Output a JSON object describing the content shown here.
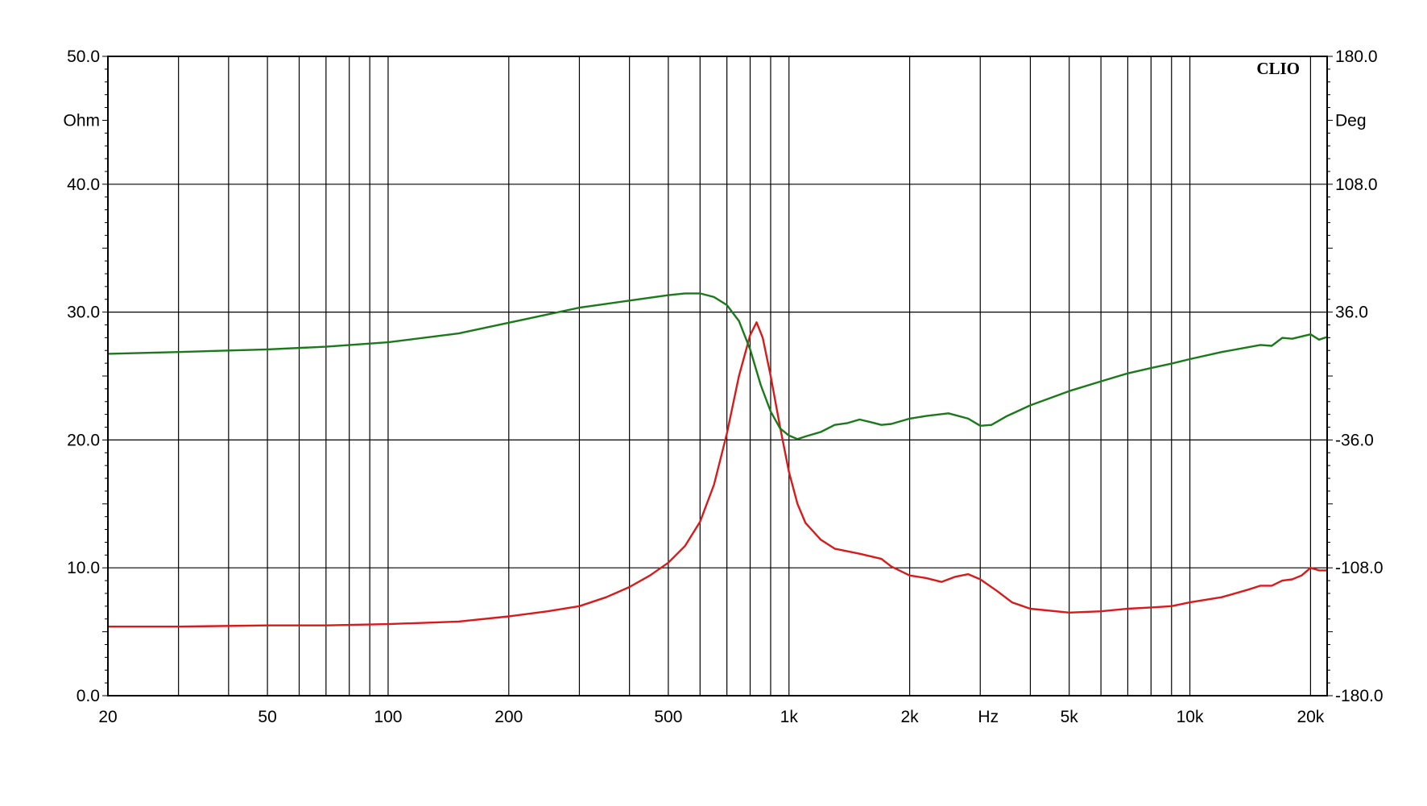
{
  "chart_data": {
    "type": "line",
    "brand": "CLIO",
    "x_scale": "log",
    "xlim": [
      20,
      22000
    ],
    "xlabel": "Hz",
    "x_ticks": [
      {
        "value": 20,
        "label": "20"
      },
      {
        "value": 50,
        "label": "50"
      },
      {
        "value": 100,
        "label": "100"
      },
      {
        "value": 200,
        "label": "200"
      },
      {
        "value": 500,
        "label": "500"
      },
      {
        "value": 1000,
        "label": "1k"
      },
      {
        "value": 2000,
        "label": "2k"
      },
      {
        "value": 5000,
        "label": "5k"
      },
      {
        "value": 10000,
        "label": "10k"
      },
      {
        "value": 20000,
        "label": "20k"
      }
    ],
    "x_gridlines": [
      20,
      30,
      40,
      50,
      60,
      70,
      80,
      90,
      100,
      200,
      300,
      400,
      500,
      600,
      700,
      800,
      900,
      1000,
      2000,
      3000,
      4000,
      5000,
      6000,
      7000,
      8000,
      9000,
      10000,
      20000
    ],
    "ylabel_left": "Ohm",
    "ylim_left": [
      0,
      50
    ],
    "y_ticks_left": [
      "0.0",
      "10.0",
      "20.0",
      "30.0",
      "40.0",
      "50.0"
    ],
    "ylabel_right": "Deg",
    "ylim_right": [
      -180,
      180
    ],
    "y_ticks_right": [
      "-180.0",
      "-108.0",
      "-36.0",
      "36.0",
      "108.0",
      "180.0"
    ],
    "grid": true,
    "series": [
      {
        "key": "impedance",
        "axis": "left",
        "color": "#d81a1a",
        "points": [
          [
            20,
            5.4
          ],
          [
            30,
            5.4
          ],
          [
            50,
            5.5
          ],
          [
            70,
            5.5
          ],
          [
            100,
            5.6
          ],
          [
            150,
            5.8
          ],
          [
            200,
            6.2
          ],
          [
            250,
            6.6
          ],
          [
            300,
            7.0
          ],
          [
            350,
            7.7
          ],
          [
            400,
            8.5
          ],
          [
            450,
            9.4
          ],
          [
            500,
            10.4
          ],
          [
            550,
            11.7
          ],
          [
            600,
            13.6
          ],
          [
            650,
            16.5
          ],
          [
            700,
            20.5
          ],
          [
            750,
            25.0
          ],
          [
            800,
            28.2
          ],
          [
            830,
            29.2
          ],
          [
            860,
            28.0
          ],
          [
            900,
            25.0
          ],
          [
            950,
            21.0
          ],
          [
            1000,
            17.5
          ],
          [
            1050,
            15.0
          ],
          [
            1100,
            13.5
          ],
          [
            1200,
            12.2
          ],
          [
            1300,
            11.5
          ],
          [
            1500,
            11.1
          ],
          [
            1700,
            10.7
          ],
          [
            1800,
            10.1
          ],
          [
            2000,
            9.4
          ],
          [
            2200,
            9.2
          ],
          [
            2400,
            8.9
          ],
          [
            2600,
            9.3
          ],
          [
            2800,
            9.5
          ],
          [
            3000,
            9.1
          ],
          [
            3300,
            8.2
          ],
          [
            3600,
            7.3
          ],
          [
            4000,
            6.8
          ],
          [
            5000,
            6.5
          ],
          [
            6000,
            6.6
          ],
          [
            7000,
            6.8
          ],
          [
            8000,
            6.9
          ],
          [
            9000,
            7.0
          ],
          [
            10000,
            7.3
          ],
          [
            12000,
            7.7
          ],
          [
            14000,
            8.3
          ],
          [
            15000,
            8.6
          ],
          [
            16000,
            8.6
          ],
          [
            17000,
            9.0
          ],
          [
            18000,
            9.1
          ],
          [
            19000,
            9.4
          ],
          [
            20000,
            10.0
          ],
          [
            21000,
            9.8
          ],
          [
            22000,
            9.8
          ]
        ]
      },
      {
        "key": "phase",
        "axis": "right",
        "color": "#1a7a1a",
        "points": [
          [
            20,
            12.5
          ],
          [
            30,
            13.5
          ],
          [
            50,
            15.0
          ],
          [
            70,
            16.5
          ],
          [
            100,
            19.0
          ],
          [
            150,
            24.0
          ],
          [
            200,
            30.0
          ],
          [
            300,
            38.5
          ],
          [
            400,
            42.5
          ],
          [
            500,
            45.5
          ],
          [
            550,
            46.5
          ],
          [
            600,
            46.5
          ],
          [
            650,
            44.5
          ],
          [
            700,
            40.0
          ],
          [
            750,
            31.0
          ],
          [
            800,
            15.0
          ],
          [
            850,
            -5.0
          ],
          [
            900,
            -20.0
          ],
          [
            950,
            -29.5
          ],
          [
            1000,
            -33.5
          ],
          [
            1050,
            -35.5
          ],
          [
            1100,
            -34.0
          ],
          [
            1200,
            -31.5
          ],
          [
            1300,
            -27.5
          ],
          [
            1400,
            -26.5
          ],
          [
            1500,
            -24.5
          ],
          [
            1600,
            -26.0
          ],
          [
            1700,
            -27.5
          ],
          [
            1800,
            -27.0
          ],
          [
            2000,
            -24.0
          ],
          [
            2200,
            -22.5
          ],
          [
            2500,
            -21.0
          ],
          [
            2800,
            -24.0
          ],
          [
            3000,
            -28.0
          ],
          [
            3200,
            -27.5
          ],
          [
            3500,
            -22.5
          ],
          [
            4000,
            -16.5
          ],
          [
            5000,
            -8.5
          ],
          [
            6000,
            -3.0
          ],
          [
            7000,
            1.5
          ],
          [
            8000,
            4.5
          ],
          [
            9000,
            7.0
          ],
          [
            10000,
            9.5
          ],
          [
            12000,
            13.5
          ],
          [
            15000,
            17.5
          ],
          [
            16000,
            17.0
          ],
          [
            17000,
            21.5
          ],
          [
            18000,
            21.0
          ],
          [
            20000,
            23.5
          ],
          [
            21000,
            20.5
          ],
          [
            22000,
            22.0
          ]
        ]
      }
    ]
  }
}
